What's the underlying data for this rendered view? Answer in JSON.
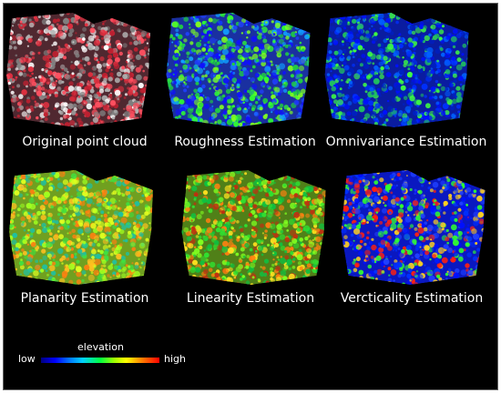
{
  "panels": [
    {
      "id": "original",
      "caption": "Original point cloud",
      "palette": [
        "#e03040",
        "#ff5060",
        "#b0b0b0",
        "#808080",
        "#ffffff",
        "#c02030"
      ],
      "base": "#502830"
    },
    {
      "id": "roughness",
      "caption": "Roughness Estimation",
      "palette": [
        "#1010ff",
        "#2040ff",
        "#20d040",
        "#30ff30",
        "#80ff20",
        "#10a0ff"
      ],
      "base": "#1a30a0"
    },
    {
      "id": "omnivariance",
      "caption": "Omnivariance Estimation",
      "palette": [
        "#0010ff",
        "#0030ff",
        "#0060ff",
        "#20c060",
        "#40ff40",
        "#0020c0"
      ],
      "base": "#0a1ca0"
    },
    {
      "id": "planarity",
      "caption": "Planarity Estimation",
      "palette": [
        "#e0ff20",
        "#a0ff20",
        "#40e040",
        "#ffc020",
        "#ff8010",
        "#20c0a0"
      ],
      "base": "#70a020"
    },
    {
      "id": "linearity",
      "caption": "Linearity Estimation",
      "palette": [
        "#30e030",
        "#80ff20",
        "#ffe020",
        "#ff8010",
        "#c03010",
        "#10c040"
      ],
      "base": "#508018"
    },
    {
      "id": "verticality",
      "caption": "Vercticality Estimation",
      "palette": [
        "#0010ff",
        "#0030ff",
        "#2040ff",
        "#ff2010",
        "#ffd020",
        "#30ff30"
      ],
      "base": "#0a18c0"
    }
  ],
  "legend": {
    "title": "elevation",
    "low": "low",
    "high": "high"
  }
}
